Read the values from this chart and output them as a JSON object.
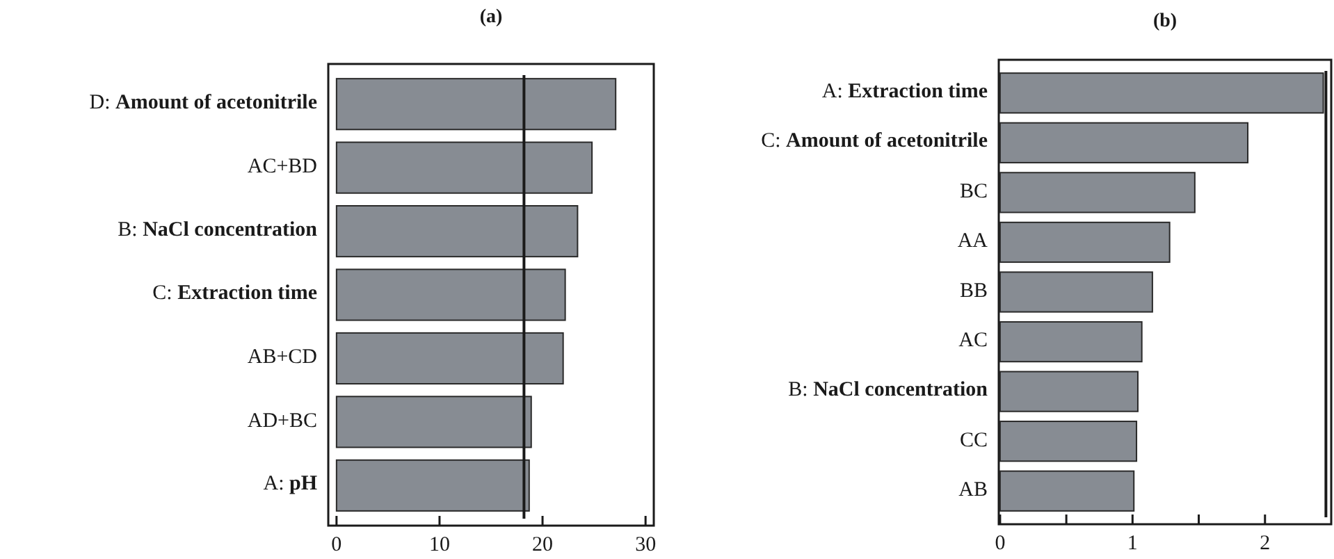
{
  "chart_data": [
    {
      "type": "bar",
      "title": "(a)",
      "orientation": "horizontal",
      "categories": [
        "D: Amount of acetonitrile",
        "AC+BD",
        "B: NaCl concentration",
        "C: Extraction time",
        "AB+CD",
        "AD+BC",
        "A: pH"
      ],
      "values": [
        27.1,
        24.8,
        23.4,
        22.2,
        22.0,
        18.9,
        18.7
      ],
      "color": "#878c93",
      "xlim": [
        -0.8,
        30.8
      ],
      "xticks": [
        0,
        10,
        20,
        30
      ],
      "grid": false,
      "ref_lines": [
        {
          "axis": "x",
          "value": 18.2,
          "color": "#1a1a1a"
        }
      ]
    },
    {
      "type": "bar",
      "title": "(b)",
      "orientation": "horizontal",
      "categories": [
        "A: Extraction time",
        "C: Amount of acetonitrile",
        "BC",
        "AA",
        "BB",
        "AC",
        "B: NaCl concentration",
        "CC",
        "AB"
      ],
      "values": [
        2.44,
        1.87,
        1.47,
        1.28,
        1.15,
        1.07,
        1.04,
        1.03,
        1.01
      ],
      "color": "#878c93",
      "xlim": [
        -0.01,
        2.5
      ],
      "xticks": [
        0,
        {
          "value": 0.5,
          "label": null
        },
        1,
        {
          "value": 1.5,
          "label": null
        },
        2
      ],
      "grid": false,
      "ref_lines": [
        {
          "axis": "x",
          "value": 2.46,
          "color": "#1a1a1a"
        }
      ]
    }
  ]
}
